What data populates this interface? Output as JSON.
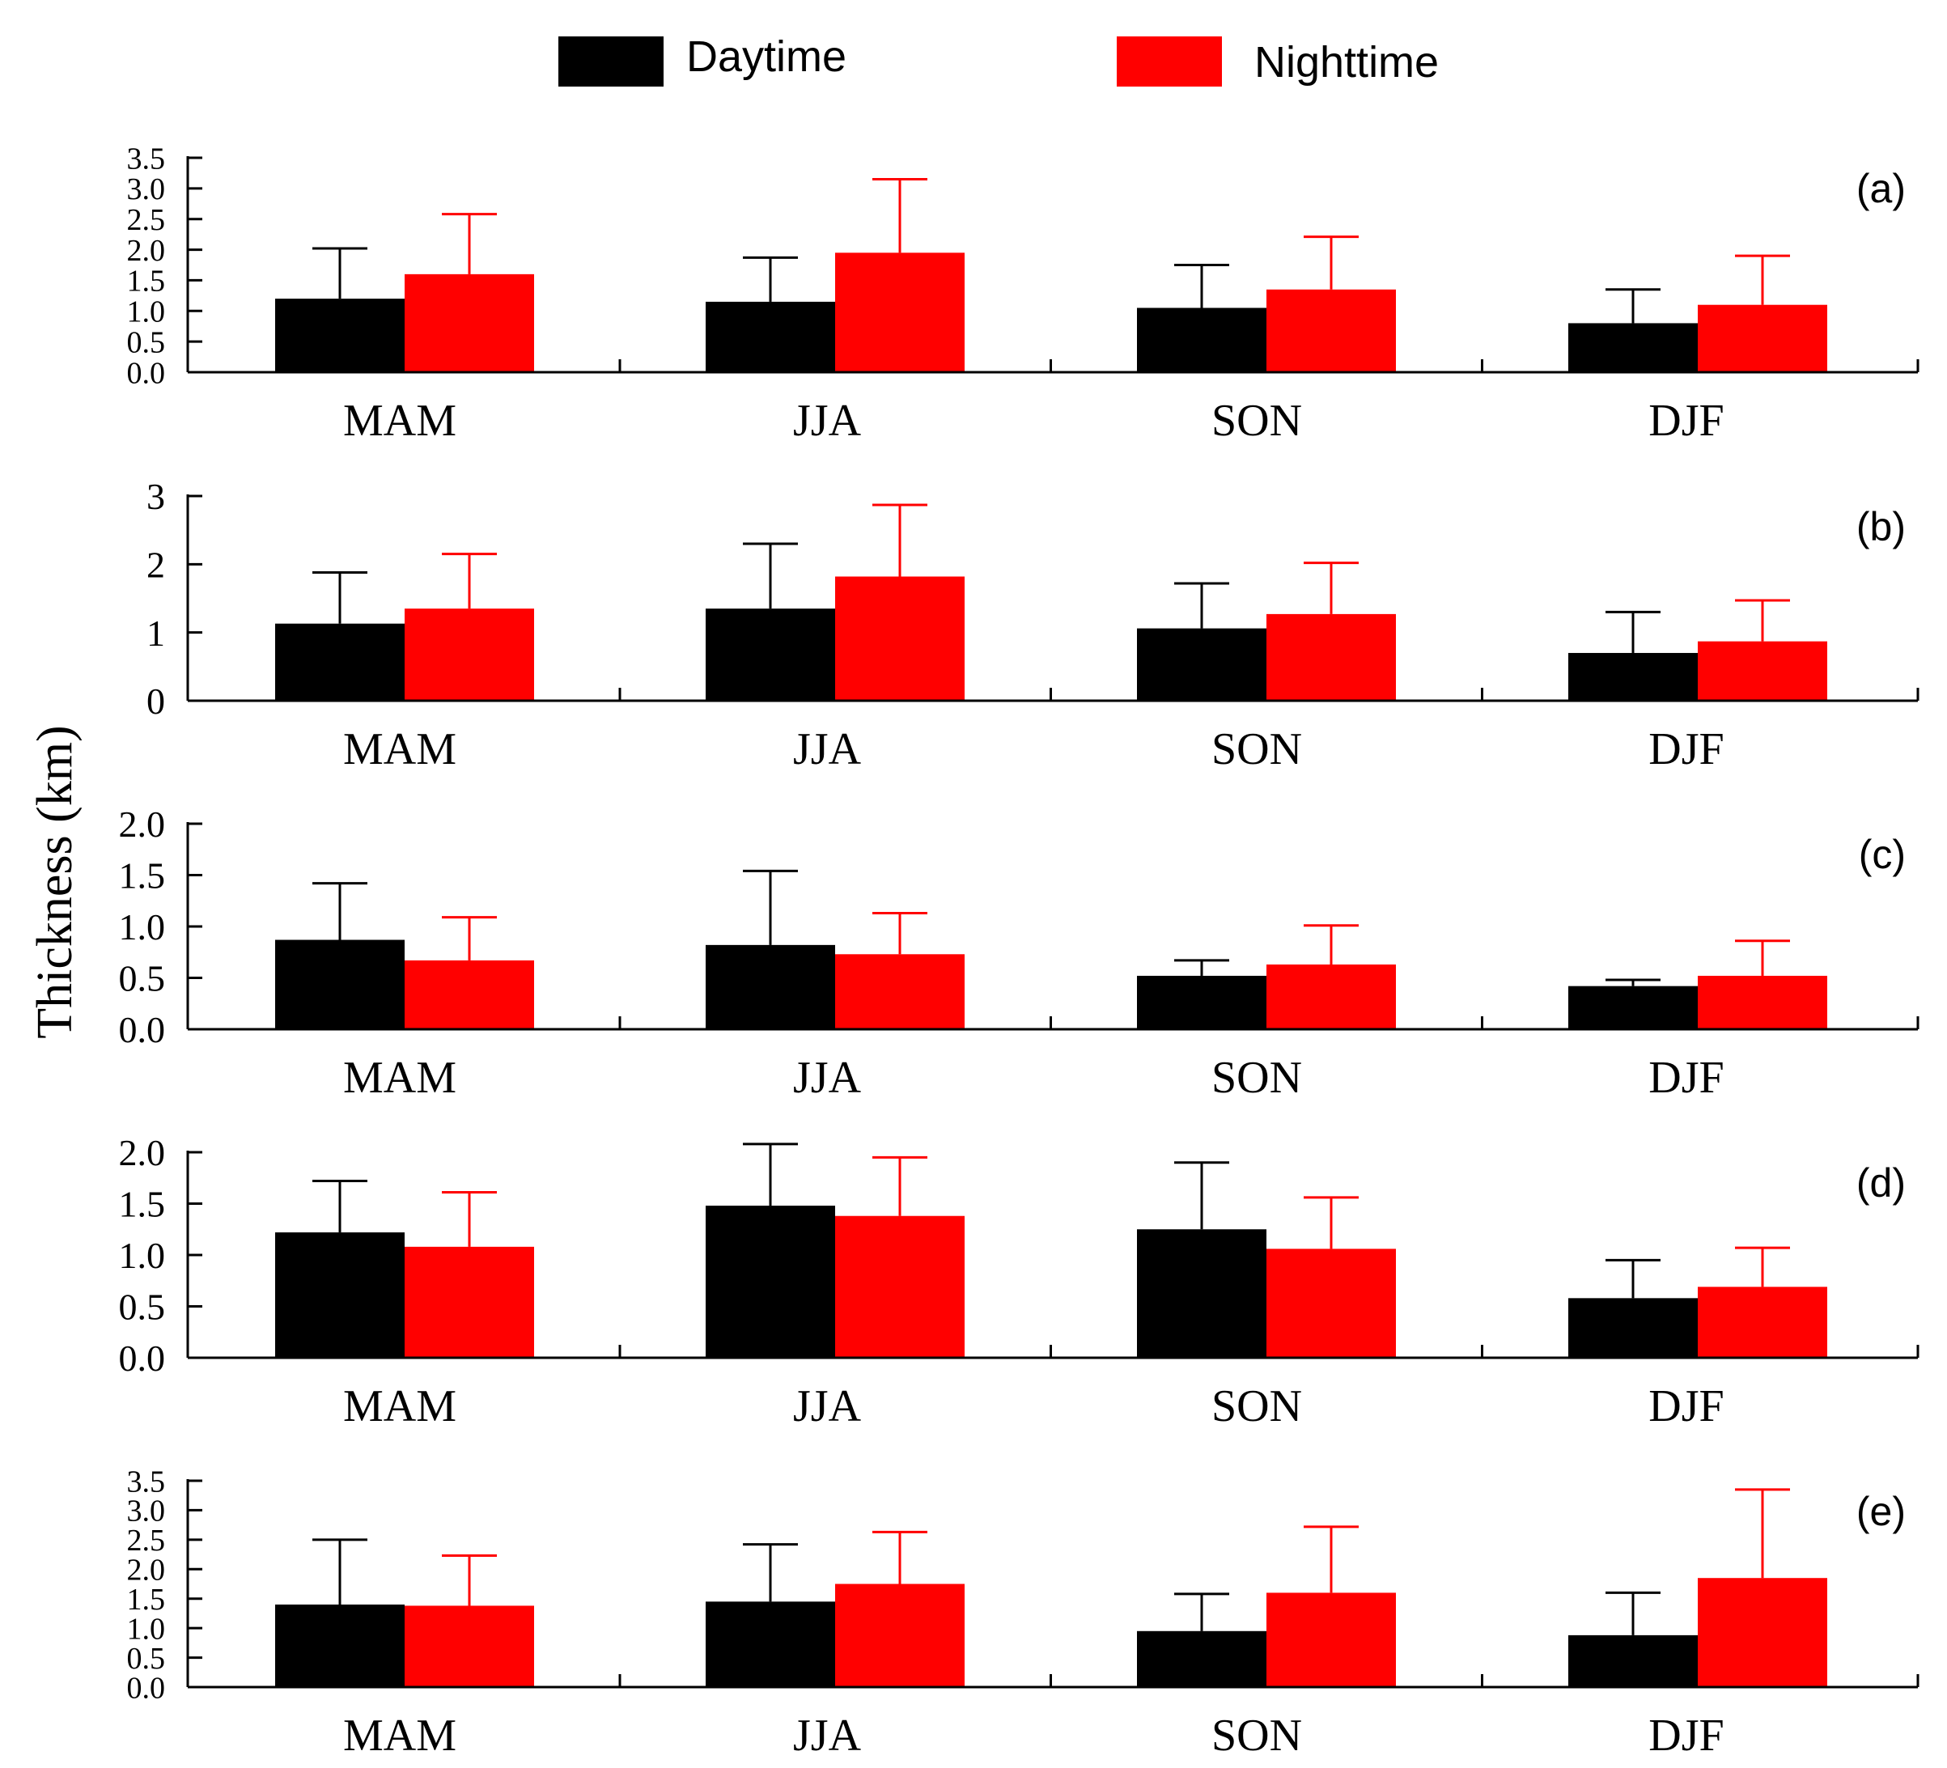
{
  "legend": [
    {
      "label": "Daytime",
      "color": "#000000"
    },
    {
      "label": "Nighttime",
      "color": "#ff0000"
    }
  ],
  "ylabel": "Thickness (km)",
  "chart_data": [
    {
      "type": "bar",
      "panel": "(a)",
      "categories": [
        "MAM",
        "JJA",
        "SON",
        "DJF"
      ],
      "ylim": [
        0,
        3.5
      ],
      "yticks": [
        "0.0",
        "0.5",
        "1.0",
        "1.5",
        "2.0",
        "2.5",
        "3.0",
        "3.5"
      ],
      "series": [
        {
          "name": "Daytime",
          "values": [
            1.2,
            1.15,
            1.05,
            0.8
          ],
          "errors": [
            0.82,
            0.72,
            0.7,
            0.55
          ]
        },
        {
          "name": "Nighttime",
          "values": [
            1.6,
            1.95,
            1.35,
            1.1
          ],
          "errors": [
            0.98,
            1.2,
            0.86,
            0.8
          ]
        }
      ]
    },
    {
      "type": "bar",
      "panel": "(b)",
      "categories": [
        "MAM",
        "JJA",
        "SON",
        "DJF"
      ],
      "ylim": [
        0,
        3
      ],
      "yticks": [
        "0",
        "1",
        "2",
        "3"
      ],
      "series": [
        {
          "name": "Daytime",
          "values": [
            1.13,
            1.35,
            1.06,
            0.7
          ],
          "errors": [
            0.75,
            0.95,
            0.66,
            0.6
          ]
        },
        {
          "name": "Nighttime",
          "values": [
            1.35,
            1.82,
            1.27,
            0.87
          ],
          "errors": [
            0.8,
            1.05,
            0.75,
            0.6
          ]
        }
      ]
    },
    {
      "type": "bar",
      "panel": "(c)",
      "categories": [
        "MAM",
        "JJA",
        "SON",
        "DJF"
      ],
      "ylim": [
        0,
        2
      ],
      "yticks": [
        "0.0",
        "0.5",
        "1.0",
        "1.5",
        "2.0"
      ],
      "series": [
        {
          "name": "Daytime",
          "values": [
            0.87,
            0.82,
            0.52,
            0.42
          ],
          "errors": [
            0.55,
            0.72,
            0.15,
            0.06
          ]
        },
        {
          "name": "Nighttime",
          "values": [
            0.67,
            0.73,
            0.63,
            0.52
          ],
          "errors": [
            0.42,
            0.4,
            0.38,
            0.34
          ]
        }
      ]
    },
    {
      "type": "bar",
      "panel": "(d)",
      "categories": [
        "MAM",
        "JJA",
        "SON",
        "DJF"
      ],
      "ylim": [
        0,
        2
      ],
      "yticks": [
        "0.0",
        "0.5",
        "1.0",
        "1.5",
        "2.0"
      ],
      "series": [
        {
          "name": "Daytime",
          "values": [
            1.22,
            1.48,
            1.25,
            0.58
          ],
          "errors": [
            0.5,
            0.6,
            0.65,
            0.37
          ]
        },
        {
          "name": "Nighttime",
          "values": [
            1.08,
            1.38,
            1.06,
            0.69
          ],
          "errors": [
            0.53,
            0.57,
            0.5,
            0.38
          ]
        }
      ]
    },
    {
      "type": "bar",
      "panel": "(e)",
      "categories": [
        "MAM",
        "JJA",
        "SON",
        "DJF"
      ],
      "ylim": [
        0,
        3.5
      ],
      "yticks": [
        "0.0",
        "0.5",
        "1.0",
        "1.5",
        "2.0",
        "2.5",
        "3.0",
        "3.5"
      ],
      "series": [
        {
          "name": "Daytime",
          "values": [
            1.4,
            1.45,
            0.95,
            0.88
          ],
          "errors": [
            1.1,
            0.97,
            0.63,
            0.72
          ]
        },
        {
          "name": "Nighttime",
          "values": [
            1.38,
            1.75,
            1.6,
            1.85
          ],
          "errors": [
            0.85,
            0.88,
            1.12,
            1.5
          ]
        }
      ]
    }
  ]
}
